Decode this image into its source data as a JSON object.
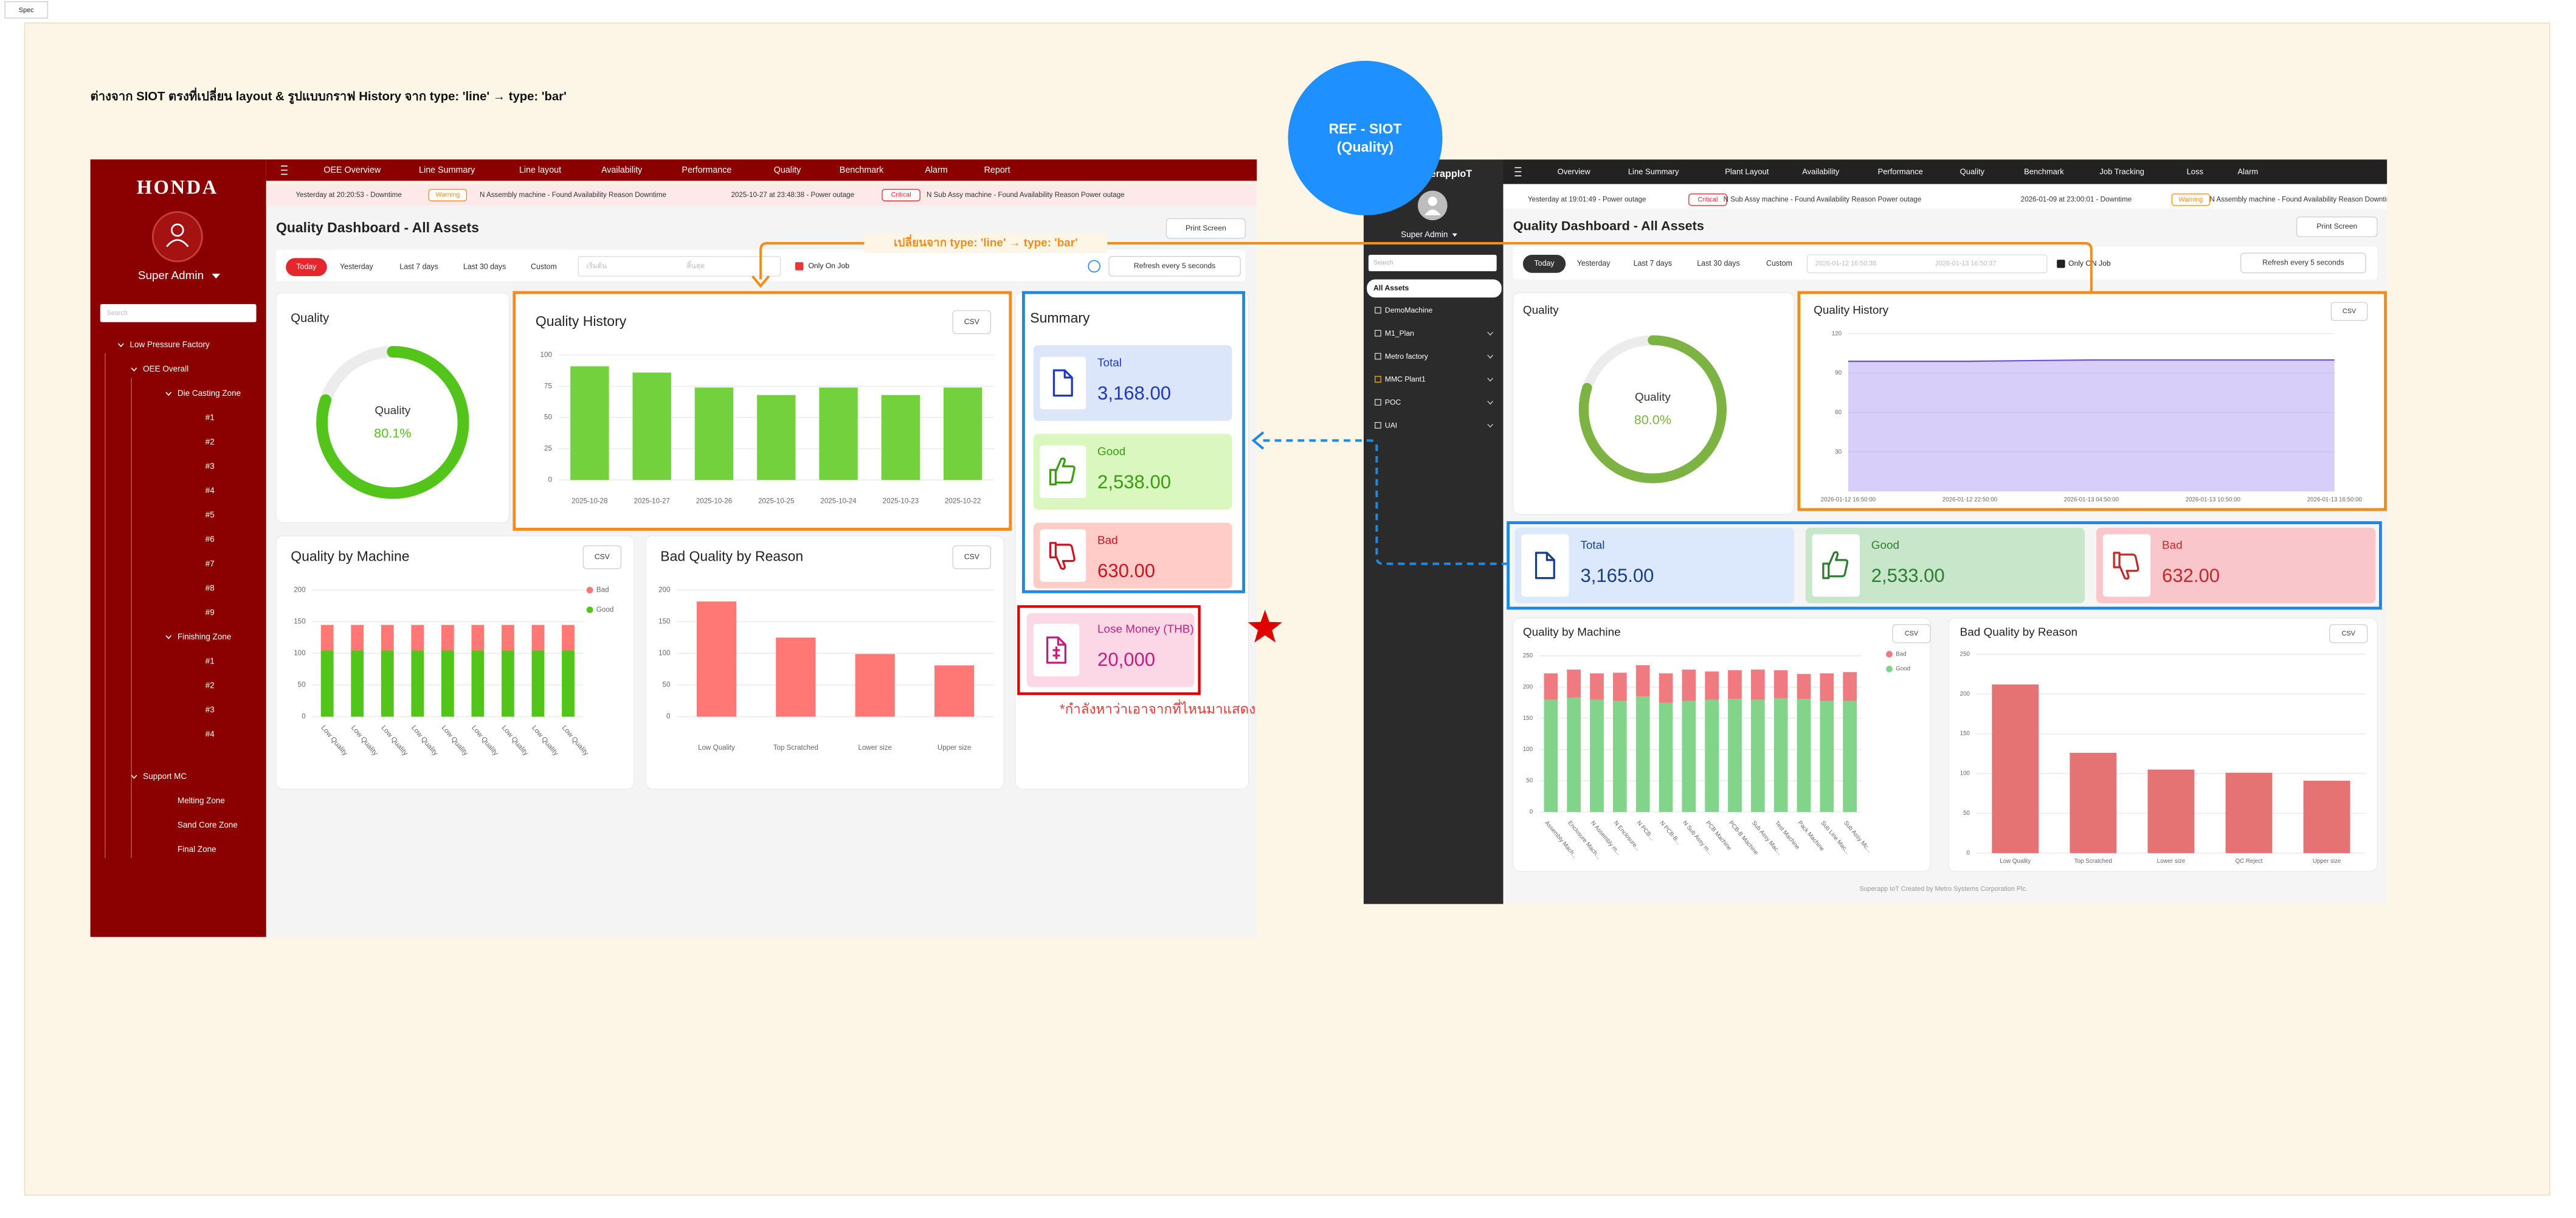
{
  "spec_tag": "Spec",
  "note": "ต่างจาก SIOT ตรงที่เปลี่ยน layout &  รูปแบบกราฟ History จาก type: 'line' → type: 'bar'",
  "change_note": "เปลี่ยนจาก type: 'line' → type: 'bar'",
  "ref_badge": [
    "REF - SIOT",
    "(Quality)"
  ],
  "pending_note": "*กำลังหาว่าเอาจากที่ไหนมาแสดง",
  "new": {
    "sidebar": {
      "logo": "HONDA",
      "user": "Super Admin",
      "search": "Search",
      "tree": [
        {
          "label": "Low Pressure Factory",
          "children": [
            {
              "label": "OEE Overall",
              "children": [
                {
                  "label": "Die Casting Zone",
                  "children": [
                    {
                      "label": "#1"
                    },
                    {
                      "label": "#2"
                    },
                    {
                      "label": "#3"
                    },
                    {
                      "label": "#4"
                    },
                    {
                      "label": "#5"
                    },
                    {
                      "label": "#6"
                    },
                    {
                      "label": "#7"
                    },
                    {
                      "label": "#8"
                    },
                    {
                      "label": "#9"
                    }
                  ]
                },
                {
                  "label": "Finishing Zone",
                  "children": [
                    {
                      "label": "#1"
                    },
                    {
                      "label": "#2"
                    },
                    {
                      "label": "#3"
                    },
                    {
                      "label": "#4"
                    }
                  ]
                }
              ]
            },
            {
              "label": "Support MC",
              "children": [
                {
                  "label": "Melting Zone"
                },
                {
                  "label": "Sand Core Zone"
                },
                {
                  "label": "Final Zone"
                }
              ]
            }
          ]
        }
      ]
    },
    "nav": [
      "OEE Overview",
      "Line Summary",
      "Line layout",
      "Availability",
      "Performance",
      "Quality",
      "Benchmark",
      "Alarm",
      "Report"
    ],
    "alerts": [
      {
        "time": "Yesterday at 20:20:53 - Downtime",
        "level": "Warning",
        "color": "#fa8c16",
        "message": "N Assembly machine - Found Availability Reason Downtime"
      },
      {
        "time": "2025-10-27 at 23:48:38 - Power outage",
        "level": "Critical",
        "color": "#f5222d",
        "message": "N Sub Assy machine - Found Availability Reason Power outage"
      }
    ],
    "title": "Quality Dashboard - All Assets",
    "print": "Print Screen",
    "filters": [
      "Today",
      "Yesterday",
      "Last 7 days",
      "Last 30 days",
      "Custom"
    ],
    "date_from": "เริ่มต้น",
    "date_to": "สิ้นสุด",
    "only_on_job": "Only On Job",
    "refresh": "Refresh every 5 seconds",
    "quality": {
      "title": "Quality",
      "label": "Quality",
      "value": 80.1,
      "value_label": "80.1%",
      "color": "#52c41a"
    },
    "history": {
      "type": "bar",
      "title": "Quality History",
      "csv": "CSV",
      "categories": [
        "2025-10-28",
        "2025-10-27",
        "2025-10-26",
        "2025-10-25",
        "2025-10-24",
        "2025-10-23",
        "2025-10-22"
      ],
      "values": [
        91,
        86,
        74,
        68,
        74,
        68,
        74
      ],
      "color": "#73d13d",
      "ylim": [
        0,
        100
      ],
      "yticks": [
        0,
        25,
        50,
        75,
        100
      ]
    },
    "summary": {
      "title": "Summary",
      "items": [
        {
          "label": "Total",
          "value": "3,168.00"
        },
        {
          "label": "Good",
          "value": "2,538.00"
        },
        {
          "label": "Bad",
          "value": "630.00"
        }
      ]
    },
    "lose_money": {
      "label": "Lose Money (THB)",
      "value": "20,000"
    },
    "by_machine": {
      "type": "stacked-bar",
      "title": "Quality by Machine",
      "csv": "CSV",
      "categories": [
        "Low Quality",
        "Low Quality",
        "Low Quality",
        "Low Quality",
        "Low Quality",
        "Low Quality",
        "Low Quality",
        "Low Quality",
        "Low Quality"
      ],
      "series": [
        {
          "name": "Good",
          "color": "#52c41a",
          "values": [
            105,
            105,
            105,
            105,
            105,
            105,
            105,
            105,
            105
          ]
        },
        {
          "name": "Bad",
          "color": "#ff7875",
          "values": [
            40,
            40,
            40,
            40,
            40,
            40,
            40,
            40,
            40
          ]
        }
      ],
      "ylim": [
        0,
        200
      ],
      "yticks": [
        0,
        50,
        100,
        150,
        200
      ]
    },
    "by_reason": {
      "type": "bar",
      "title": "Bad Quality by Reason",
      "csv": "CSV",
      "categories": [
        "Low Quality",
        "Top Scratched",
        "Lower size",
        "Upper size"
      ],
      "values": [
        182,
        125,
        99,
        81
      ],
      "color": "#ff7875",
      "ylim": [
        0,
        200
      ],
      "yticks": [
        0,
        50,
        100,
        150,
        200
      ]
    }
  },
  "ref": {
    "sidebar": {
      "logo": "SuperappIoT",
      "user": "Super Admin",
      "search": "Search",
      "root": "All Assets",
      "items": [
        "DemoMachine",
        "M1_Plan",
        "Metro factory",
        "MMC Plant1",
        "POC",
        "UAI"
      ]
    },
    "nav": [
      "Overview",
      "Line Summary",
      "Plant Layout",
      "Availability",
      "Performance",
      "Quality",
      "Benchmark",
      "Job Tracking",
      "Loss",
      "Alarm"
    ],
    "alerts": [
      {
        "time": "Yesterday at 19:01:49 - Power outage",
        "level": "Critical",
        "color": "#f5222d",
        "message": "N Sub Assy machine - Found Availability Reason Power outage"
      },
      {
        "time": "2026-01-09 at 23:00:01 - Downtime",
        "level": "Warning",
        "color": "#fa8c16",
        "message": "N Assembly machine - Found Availability Reason Downtime"
      }
    ],
    "title": "Quality Dashboard - All Assets",
    "print": "Print Screen",
    "filters": [
      "Today",
      "Yesterday",
      "Last 7 days",
      "Last 30 days",
      "Custom"
    ],
    "date_from": "2026-01-12 16:50:38",
    "date_to": "2026-01-13 16:50:37",
    "only_on_job": "Only ON Job",
    "refresh": "Refresh every 5 seconds",
    "quality": {
      "title": "Quality",
      "label": "Quality",
      "value": 80.0,
      "value_label": "80.0%",
      "color": "#7cb342"
    },
    "history": {
      "type": "area",
      "title": "Quality History",
      "csv": "CSV",
      "categories": [
        "2026-01-12 16:50:00",
        "2026-01-12 22:50:00",
        "2026-01-13 04:50:00",
        "2026-01-13 10:50:00",
        "2026-01-13 16:50:00"
      ],
      "values": [
        99,
        99,
        100,
        100,
        100
      ],
      "color": "#9b86f0",
      "ylim": [
        0,
        120
      ],
      "yticks": [
        30,
        60,
        90,
        120
      ]
    },
    "summary": {
      "items": [
        {
          "label": "Total",
          "value": "3,165.00"
        },
        {
          "label": "Good",
          "value": "2,533.00"
        },
        {
          "label": "Bad",
          "value": "632.00"
        }
      ]
    },
    "by_machine": {
      "type": "stacked-bar",
      "title": "Quality by Machine",
      "csv": "CSV",
      "categories": [
        "Assembly Mach...",
        "Enclosure Mach...",
        "N Assembly m...",
        "N Enclosure...",
        "N PCB...",
        "N PCB-B...",
        "N Sub Assy m...",
        "PCB Machine",
        "PCB-B Machine",
        "Sub Assy Mac...",
        "Test Machine",
        "Pack Machine",
        "Sub Line Mac...",
        "Sub Assy Mc..."
      ],
      "series": [
        {
          "name": "Good",
          "color": "#81d48a",
          "values": [
            180,
            183,
            180,
            178,
            185,
            175,
            178,
            180,
            181,
            180,
            182,
            181,
            178,
            178
          ]
        },
        {
          "name": "Bad",
          "color": "#ef7b80",
          "values": [
            42,
            45,
            42,
            45,
            50,
            47,
            50,
            45,
            46,
            48,
            45,
            40,
            44,
            46
          ]
        }
      ],
      "ylim": [
        0,
        250
      ],
      "yticks": [
        0,
        50,
        100,
        150,
        200,
        250
      ]
    },
    "by_reason": {
      "type": "bar",
      "title": "Bad Quality by Reason",
      "csv": "CSV",
      "categories": [
        "Low Quality",
        "Top Scratched",
        "Lower size",
        "QC Reject",
        "Upper size"
      ],
      "values": [
        212,
        126,
        105,
        101,
        91
      ],
      "color": "#e57373",
      "ylim": [
        0,
        250
      ],
      "yticks": [
        0,
        50,
        100,
        150,
        200,
        250
      ]
    },
    "footer": "Superapp IoT Created by Metro Systems Corporation Plc."
  }
}
